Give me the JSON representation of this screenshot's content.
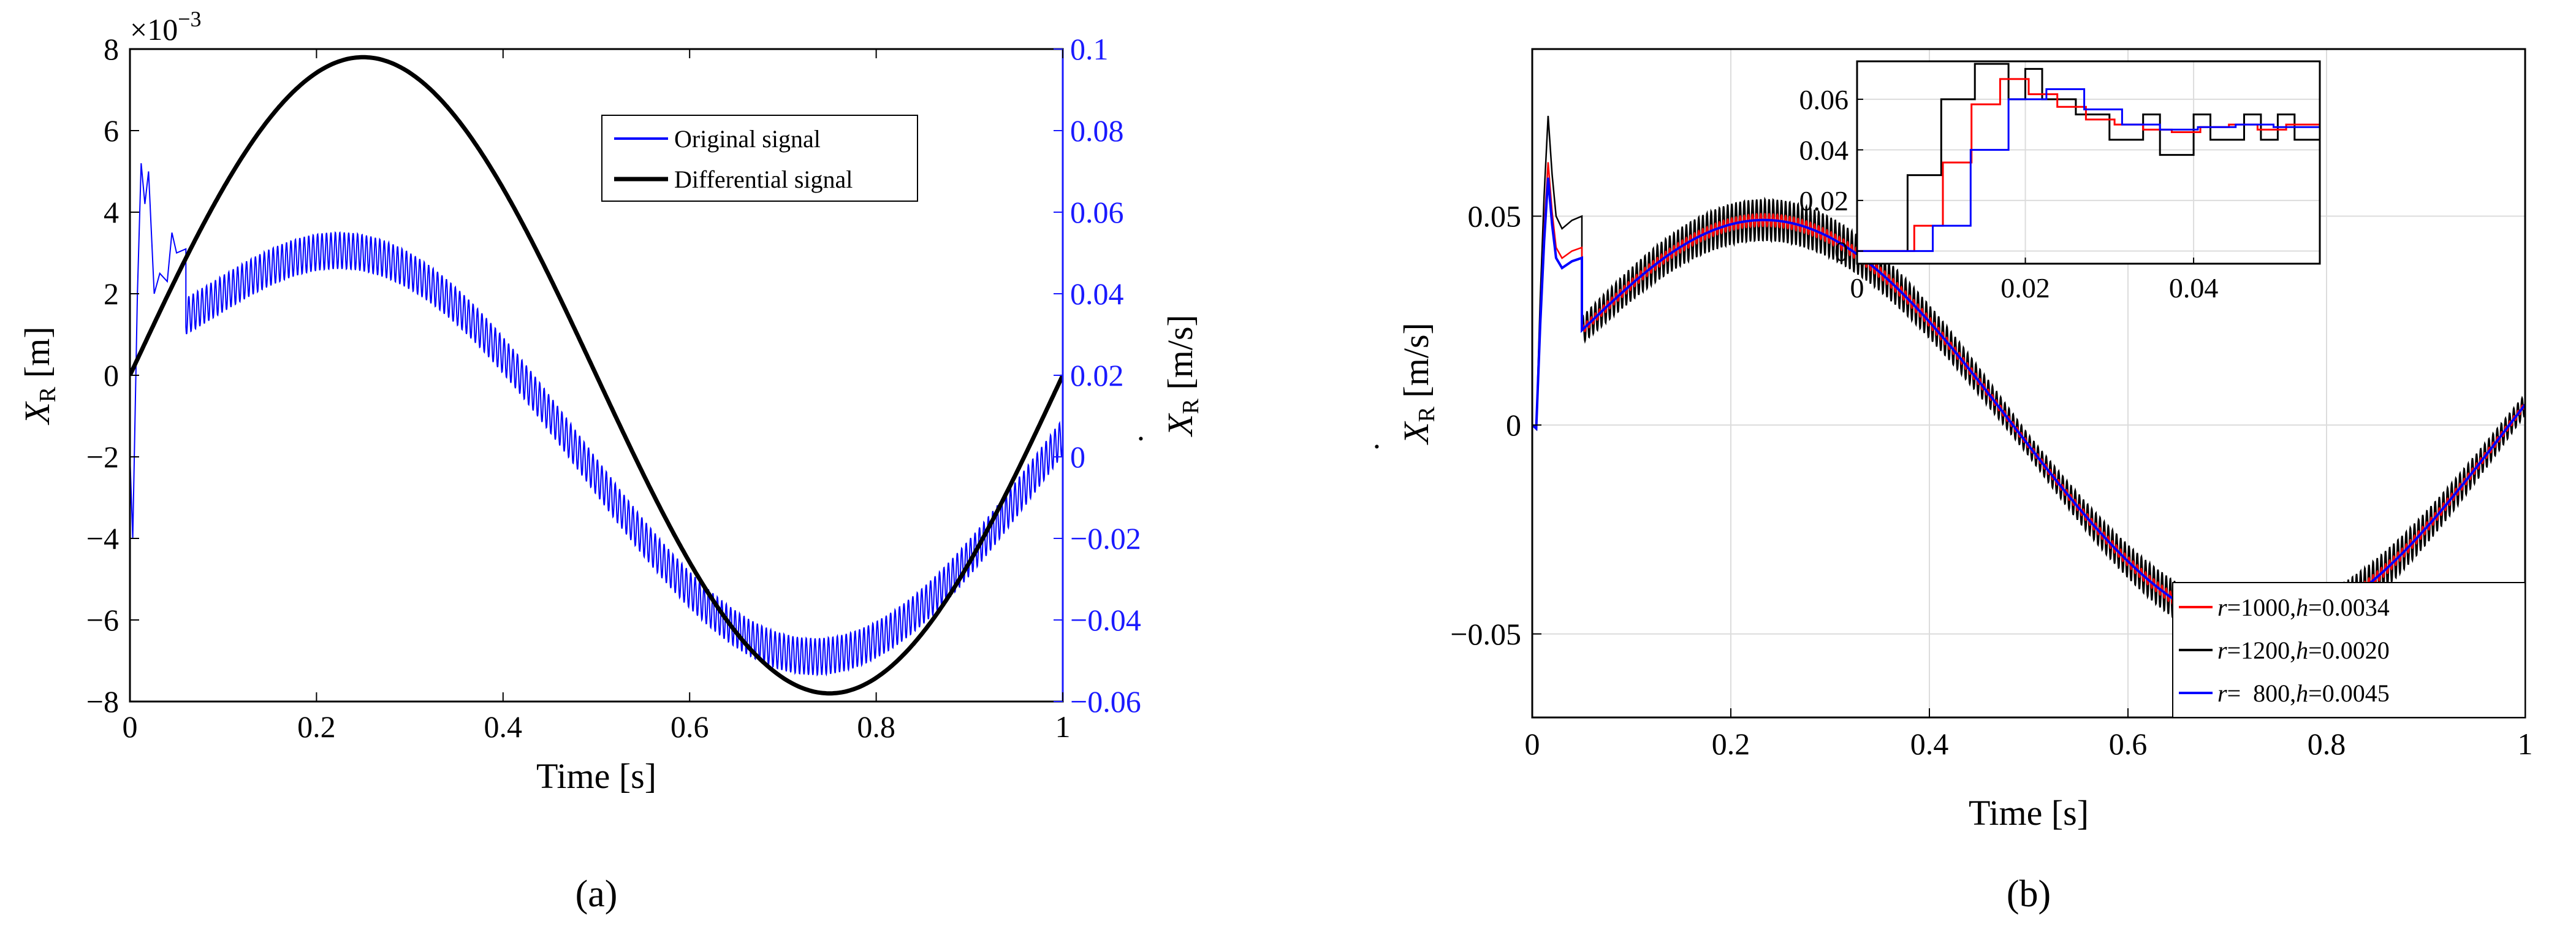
{
  "panels": [
    {
      "label": "(a)"
    },
    {
      "label": "(b)"
    }
  ],
  "chart_data": [
    {
      "type": "line",
      "panel": "(a)",
      "xlabel": "Time [s]",
      "ylabel_left": "X_R [m]",
      "ylabel_left_base": "X",
      "ylabel_left_sub": "R",
      "ylabel_left_unit": "[m]",
      "ylabel_right": "Ẋ_R [m/s]",
      "ylabel_right_base": "X",
      "ylabel_right_sub": "R",
      "ylabel_right_unit": "[m/s]",
      "exponent_label": "×10",
      "exponent_power": "−3",
      "xlim": [
        0,
        1
      ],
      "ylim_left": [
        -8,
        8
      ],
      "ylim_right": [
        -0.06,
        0.1
      ],
      "xticks": [
        0,
        0.2,
        0.4,
        0.6,
        0.8,
        1
      ],
      "xtick_labels": [
        "0",
        "0.2",
        "0.4",
        "0.6",
        "0.8",
        "1"
      ],
      "yticks_left": [
        -8,
        -6,
        -4,
        -2,
        0,
        2,
        4,
        6,
        8
      ],
      "ytick_labels_left": [
        "−8",
        "−6",
        "−4",
        "−2",
        "0",
        "2",
        "4",
        "6",
        "8"
      ],
      "yticks_right": [
        -0.06,
        -0.04,
        -0.02,
        0,
        0.02,
        0.04,
        0.06,
        0.08,
        0.1
      ],
      "ytick_labels_right": [
        "−0.06",
        "−0.04",
        "−0.02",
        "0",
        "0.02",
        "0.04",
        "0.06",
        "0.08",
        "0.1"
      ],
      "grid": false,
      "legend_position": "top-right",
      "series": [
        {
          "name": "Original signal",
          "color": "#0000ff",
          "axis": "right",
          "description_formula": "0.05*sin(2*pi*t) noisy, amplitude 0.049 m/s, startup transient peak 0.072 near t=0.01"
        },
        {
          "name": "Differential signal",
          "color": "#000000",
          "axis": "left",
          "description_formula": "7.8e-3*sin(2*pi*t) m"
        }
      ],
      "line_params": {
        "differential_amplitude": 7.8,
        "original_amplitude": 0.049,
        "original_ripple": 0.0045,
        "transient_points": [
          [
            0,
            0
          ],
          [
            0.003,
            -0.02
          ],
          [
            0.008,
            0.04
          ],
          [
            0.012,
            0.072
          ],
          [
            0.016,
            0.062
          ],
          [
            0.02,
            0.07
          ],
          [
            0.026,
            0.04
          ],
          [
            0.032,
            0.045
          ],
          [
            0.04,
            0.043
          ],
          [
            0.045,
            0.055
          ],
          [
            0.05,
            0.05
          ],
          [
            0.06,
            0.051
          ]
        ]
      }
    },
    {
      "type": "line",
      "panel": "(b)",
      "xlabel": "Time [s]",
      "ylabel": "Ẋ_R [m/s]",
      "ylabel_base": "X",
      "ylabel_sub": "R",
      "ylabel_unit": "[m/s]",
      "xlim": [
        0,
        1
      ],
      "ylim": [
        -0.07,
        0.09
      ],
      "xticks": [
        0,
        0.2,
        0.4,
        0.6,
        0.8,
        1
      ],
      "xtick_labels": [
        "0",
        "0.2",
        "0.4",
        "0.6",
        "0.8",
        "1"
      ],
      "yticks": [
        -0.05,
        0,
        0.05
      ],
      "ytick_labels": [
        "−0.05",
        "0",
        "0.05"
      ],
      "grid": true,
      "legend_position": "bottom-right",
      "series": [
        {
          "name": "r=1000,h=0.0034",
          "r_label": "r",
          "r_val": "=1000,",
          "h_label": "h",
          "h_val": "=0.0034",
          "color": "#ff0000",
          "ripple": 0.0015
        },
        {
          "name": "r=1200,h=0.0020",
          "r_label": "r",
          "r_val": "=1200,",
          "h_label": "h",
          "h_val": "=0.0020",
          "color": "#000000",
          "ripple": 0.005
        },
        {
          "name": "r=  800,h=0.0045",
          "r_label": "r",
          "r_val": "=  800,",
          "h_label": "h",
          "h_val": "=0.0045",
          "color": "#0000ff",
          "ripple": 0.0
        }
      ],
      "base_amplitude": 0.049,
      "inset": {
        "xlim": [
          0,
          0.055
        ],
        "ylim": [
          -0.005,
          0.075
        ],
        "xticks": [
          0,
          0.02,
          0.04
        ],
        "xtick_labels": [
          "0",
          "0.02",
          "0.04"
        ],
        "yticks": [
          0,
          0.02,
          0.04,
          0.06
        ],
        "ytick_labels": [
          "0",
          "0.02",
          "0.04",
          "0.06"
        ],
        "grid": true,
        "series": [
          {
            "name": "r=1200,h=0.0020",
            "color": "#000000",
            "steps": [
              [
                0,
                0
              ],
              [
                0.006,
                0.03
              ],
              [
                0.01,
                0.06
              ],
              [
                0.014,
                0.074
              ],
              [
                0.018,
                0.06
              ],
              [
                0.02,
                0.072
              ],
              [
                0.022,
                0.06
              ],
              [
                0.026,
                0.054
              ],
              [
                0.03,
                0.044
              ],
              [
                0.034,
                0.054
              ],
              [
                0.036,
                0.038
              ],
              [
                0.04,
                0.054
              ],
              [
                0.042,
                0.044
              ],
              [
                0.046,
                0.054
              ],
              [
                0.048,
                0.044
              ],
              [
                0.05,
                0.054
              ],
              [
                0.052,
                0.044
              ],
              [
                0.055,
                0.05
              ]
            ]
          },
          {
            "name": "r=1000,h=0.0034",
            "color": "#ff0000",
            "steps": [
              [
                0,
                0
              ],
              [
                0.0068,
                0.01
              ],
              [
                0.0102,
                0.035
              ],
              [
                0.0136,
                0.058
              ],
              [
                0.017,
                0.068
              ],
              [
                0.0204,
                0.062
              ],
              [
                0.0238,
                0.057
              ],
              [
                0.0272,
                0.052
              ],
              [
                0.0306,
                0.05
              ],
              [
                0.034,
                0.048
              ],
              [
                0.0374,
                0.047
              ],
              [
                0.0408,
                0.049
              ],
              [
                0.0442,
                0.05
              ],
              [
                0.0476,
                0.048
              ],
              [
                0.051,
                0.05
              ],
              [
                0.055,
                0.05
              ]
            ]
          },
          {
            "name": "r=  800,h=0.0045",
            "color": "#0000ff",
            "steps": [
              [
                0,
                0
              ],
              [
                0.009,
                0.01
              ],
              [
                0.0135,
                0.04
              ],
              [
                0.018,
                0.06
              ],
              [
                0.0225,
                0.064
              ],
              [
                0.027,
                0.056
              ],
              [
                0.0315,
                0.05
              ],
              [
                0.036,
                0.048
              ],
              [
                0.0405,
                0.049
              ],
              [
                0.045,
                0.05
              ],
              [
                0.0495,
                0.049
              ],
              [
                0.055,
                0.049
              ]
            ]
          }
        ]
      }
    }
  ]
}
